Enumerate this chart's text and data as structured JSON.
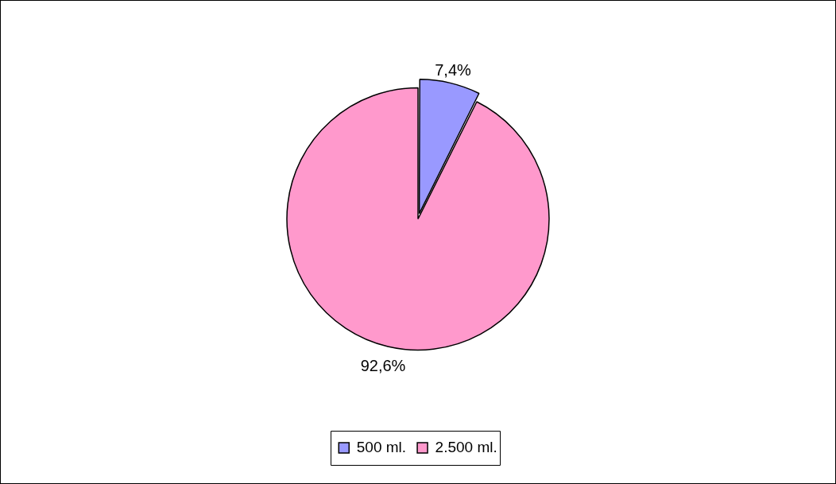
{
  "chart_data": {
    "type": "pie",
    "categories": [
      "500 ml.",
      "2.500 ml."
    ],
    "values": [
      7.4,
      92.6
    ],
    "colors": [
      "#9999ff",
      "#ff99cc"
    ],
    "value_labels": [
      "7,4%",
      "92,6%"
    ],
    "legend": "bottom"
  }
}
